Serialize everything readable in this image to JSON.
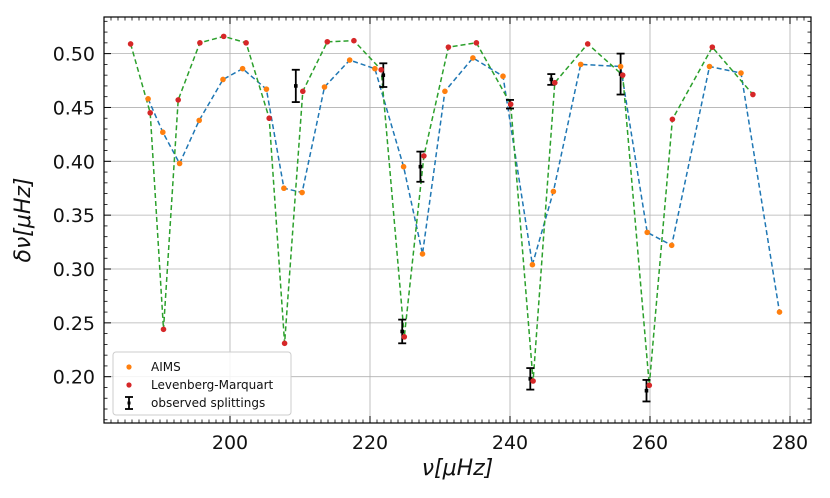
{
  "chart_data": {
    "type": "line",
    "title": "",
    "xlabel": "ν[μHz]",
    "ylabel": "δν[μHz]",
    "xlim": [
      182,
      283
    ],
    "ylim": [
      0.157,
      0.534
    ],
    "grid": true,
    "legend_position": "bottom-left",
    "x_ticks": [
      200,
      220,
      240,
      260,
      280
    ],
    "x_tick_labels": [
      "200",
      "220",
      "240",
      "260",
      "280"
    ],
    "y_ticks": [
      0.2,
      0.25,
      0.3,
      0.35,
      0.4,
      0.45,
      0.5
    ],
    "y_tick_labels": [
      "0.20",
      "0.25",
      "0.30",
      "0.35",
      "0.40",
      "0.45",
      "0.50"
    ],
    "series": [
      {
        "name": "AIMS",
        "marker_color": "#ff7f0e",
        "line_color": "#1f77b4",
        "x": [
          188.3,
          190.4,
          192.8,
          195.6,
          199.0,
          201.8,
          205.2,
          207.7,
          210.3,
          213.5,
          217.1,
          220.7,
          224.8,
          227.5,
          230.7,
          234.7,
          239.0,
          243.2,
          246.2,
          250.1,
          255.8,
          259.6,
          263.1,
          268.5,
          273.0,
          278.5
        ],
        "y": [
          0.458,
          0.427,
          0.398,
          0.438,
          0.476,
          0.486,
          0.467,
          0.375,
          0.371,
          0.469,
          0.494,
          0.486,
          0.395,
          0.314,
          0.465,
          0.496,
          0.479,
          0.304,
          0.372,
          0.49,
          0.488,
          0.334,
          0.322,
          0.488,
          0.482,
          0.26
        ]
      },
      {
        "name": "Levenberg-Marquart",
        "marker_color": "#d62728",
        "line_color": "#2ca02c",
        "x": [
          185.8,
          188.6,
          190.5,
          192.6,
          195.7,
          199.1,
          202.3,
          205.6,
          207.8,
          210.4,
          213.9,
          217.7,
          221.6,
          224.9,
          227.7,
          231.2,
          235.2,
          240.1,
          243.3,
          246.4,
          251.1,
          256.1,
          259.9,
          263.2,
          268.9,
          274.7
        ],
        "y": [
          0.509,
          0.445,
          0.244,
          0.457,
          0.51,
          0.516,
          0.51,
          0.44,
          0.231,
          0.465,
          0.511,
          0.512,
          0.485,
          0.237,
          0.405,
          0.506,
          0.51,
          0.453,
          0.196,
          0.473,
          0.509,
          0.48,
          0.192,
          0.439,
          0.506,
          0.462
        ]
      },
      {
        "name": "observed splittings",
        "marker_color": "#000000",
        "x": [
          209.4,
          221.9,
          224.6,
          227.2,
          240.0,
          242.9,
          245.9,
          255.8,
          259.5
        ],
        "y": [
          0.47,
          0.48,
          0.242,
          0.395,
          0.453,
          0.198,
          0.476,
          0.481,
          0.187
        ],
        "yerr": [
          0.015,
          0.011,
          0.011,
          0.014,
          0.004,
          0.01,
          0.005,
          0.019,
          0.01
        ]
      }
    ]
  }
}
